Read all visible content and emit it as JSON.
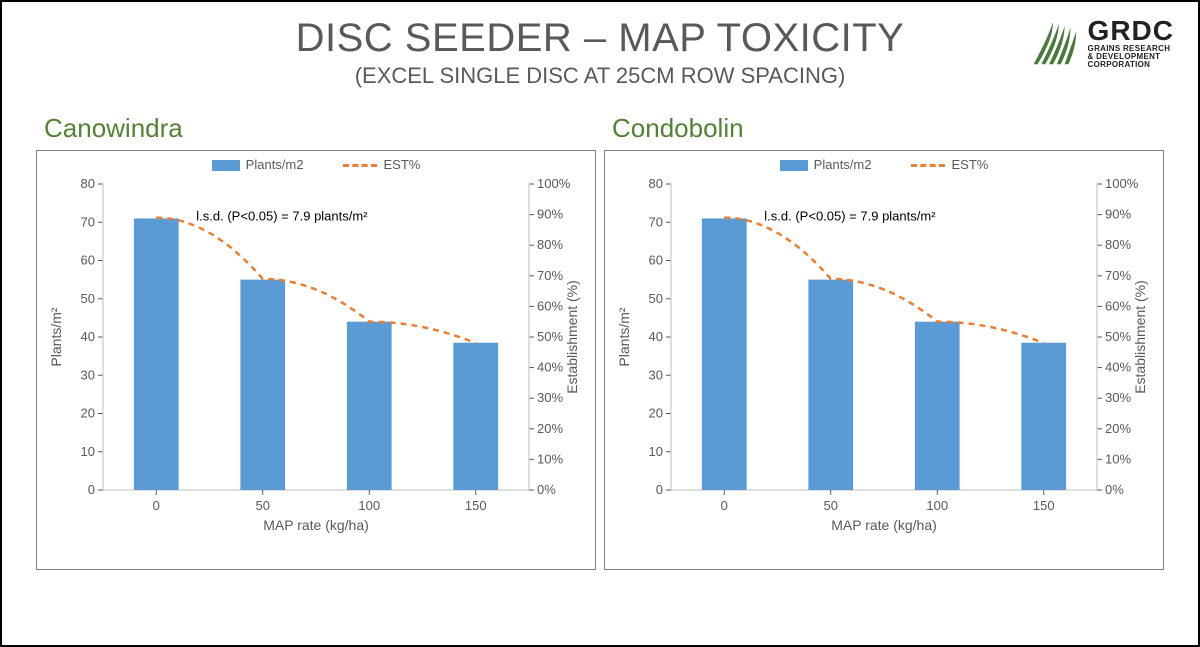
{
  "title": "DISC SEEDER – MAP TOXICITY",
  "subtitle": "(EXCEL SINGLE DISC AT 25CM ROW SPACING)",
  "logo": {
    "brand": "GRDC",
    "line1": "GRAINS RESEARCH",
    "line2": "& DEVELOPMENT",
    "line3": "CORPORATION",
    "leaf_color": "#4a7a3a"
  },
  "legend": {
    "bar_label": "Plants/m2",
    "line_label": "EST%",
    "bar_color": "#5b9bd5",
    "line_color": "#ed7d31"
  },
  "axes": {
    "x_label": "MAP rate (kg/ha)",
    "y_left_label": "Plants/m²",
    "y_right_label": "Establishment (%)",
    "x_ticks": [
      0,
      50,
      100,
      150
    ],
    "y_left": {
      "min": 0,
      "max": 80,
      "step": 10
    },
    "y_right": {
      "min": 0,
      "max": 100,
      "step": 10,
      "suffix": "%"
    },
    "tick_color": "#595959",
    "axis_color": "#bfbfbf",
    "grid": false
  },
  "lsd_note": "l.s.d. (P<0.05) = 7.9 plants/m²",
  "style": {
    "title_color": "#595959",
    "loc_color": "#548235",
    "bar_width": 0.42,
    "line_dash": "6,5",
    "line_width": 2.5,
    "frame_border": "#7f7f7f",
    "font": "Segoe UI"
  },
  "charts": [
    {
      "location": "Canowindra",
      "bars": [
        71,
        55,
        44,
        38.5
      ],
      "est_pct": [
        89,
        69,
        55,
        48
      ]
    },
    {
      "location": "Condobolin",
      "bars": [
        71,
        55,
        44,
        38.5
      ],
      "est_pct": [
        89,
        69,
        55,
        48
      ]
    }
  ]
}
